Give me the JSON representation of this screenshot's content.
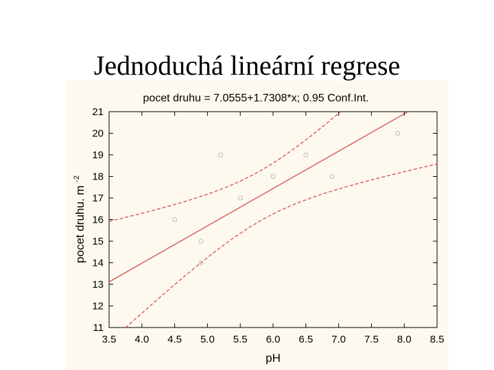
{
  "slide": {
    "title": "Jednoduchá lineární regrese"
  },
  "colors": {
    "background": "#fdf9ef",
    "regression": "#d94a4a",
    "points": "#bbbbbb",
    "axis": "#000000"
  },
  "chart_data": {
    "type": "scatter",
    "title": "pocet druhu = 7.0555+1.7308*x; 0.95 Conf.Int.",
    "xlabel": "pH",
    "ylabel": "pocet druhu. m",
    "ylabel_sup": "-2",
    "xlim": [
      3.5,
      8.5
    ],
    "ylim": [
      11,
      21
    ],
    "x_ticks": [
      "3.5",
      "4.0",
      "4.5",
      "5.0",
      "5.5",
      "6.0",
      "6.5",
      "7.0",
      "7.5",
      "8.0",
      "8.5"
    ],
    "y_ticks": [
      "11",
      "12",
      "13",
      "14",
      "15",
      "16",
      "17",
      "18",
      "19",
      "20",
      "21"
    ],
    "points": [
      {
        "x": 4.5,
        "y": 16
      },
      {
        "x": 4.9,
        "y": 15
      },
      {
        "x": 4.9,
        "y": 14
      },
      {
        "x": 5.2,
        "y": 19
      },
      {
        "x": 5.5,
        "y": 17
      },
      {
        "x": 6.0,
        "y": 18
      },
      {
        "x": 6.5,
        "y": 19
      },
      {
        "x": 6.9,
        "y": 18
      },
      {
        "x": 7.9,
        "y": 20
      }
    ],
    "regression": {
      "intercept": 7.0555,
      "slope": 1.7308
    },
    "confidence_level": 0.95,
    "grid": false
  }
}
